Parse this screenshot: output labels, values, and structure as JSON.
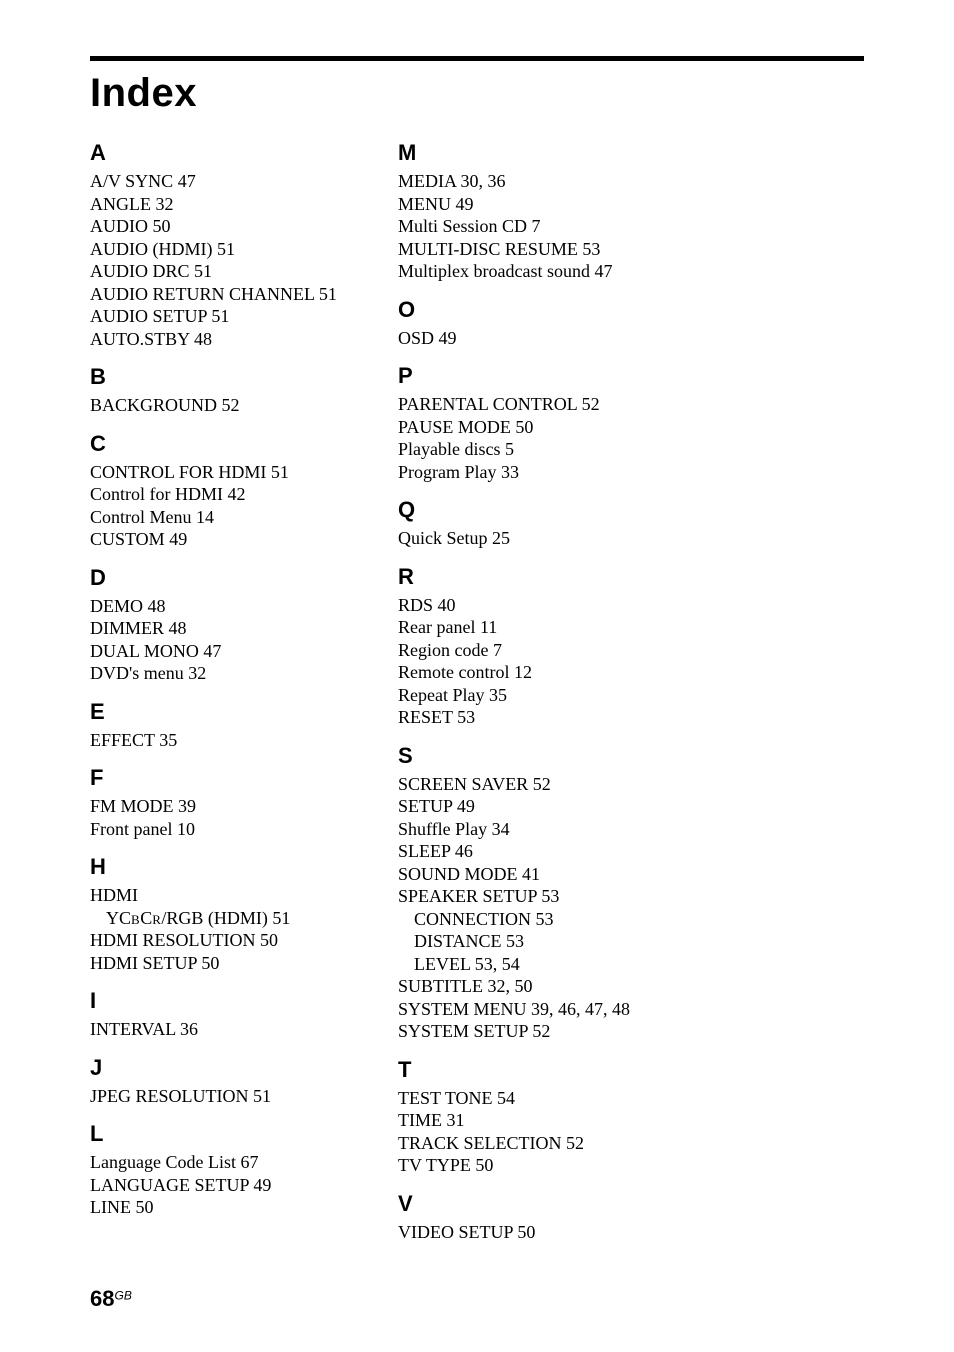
{
  "title": "Index",
  "page_number": "68",
  "page_locale": "GB",
  "columns": [
    {
      "groups": [
        {
          "letter": "A",
          "entries": [
            {
              "text": "A/V SYNC 47"
            },
            {
              "text": "ANGLE 32"
            },
            {
              "text": "AUDIO 50"
            },
            {
              "text": "AUDIO (HDMI) 51"
            },
            {
              "text": "AUDIO DRC 51"
            },
            {
              "text": "AUDIO RETURN CHANNEL 51"
            },
            {
              "text": "AUDIO SETUP 51"
            },
            {
              "text": "AUTO.STBY 48"
            }
          ]
        },
        {
          "letter": "B",
          "entries": [
            {
              "text": "BACKGROUND 52"
            }
          ]
        },
        {
          "letter": "C",
          "entries": [
            {
              "text": "CONTROL FOR HDMI 51"
            },
            {
              "text": "Control for HDMI 42"
            },
            {
              "text": "Control Menu 14"
            },
            {
              "text": "CUSTOM 49"
            }
          ]
        },
        {
          "letter": "D",
          "entries": [
            {
              "text": "DEMO 48"
            },
            {
              "text": "DIMMER 48"
            },
            {
              "text": "DUAL MONO 47"
            },
            {
              "text": "DVD's menu 32"
            }
          ]
        },
        {
          "letter": "E",
          "entries": [
            {
              "text": "EFFECT 35"
            }
          ]
        },
        {
          "letter": "F",
          "entries": [
            {
              "text": "FM MODE 39"
            },
            {
              "text": "Front panel 10"
            }
          ]
        },
        {
          "letter": "H",
          "entries": [
            {
              "text": "HDMI"
            },
            {
              "text_html": "YC<span class='sc'>b</span>C<span class='sc'>r</span>/RGB (HDMI) 51",
              "sub": true
            },
            {
              "text": "HDMI RESOLUTION 50"
            },
            {
              "text": "HDMI SETUP 50"
            }
          ]
        },
        {
          "letter": "I",
          "entries": [
            {
              "text": "INTERVAL 36"
            }
          ]
        },
        {
          "letter": "J",
          "entries": [
            {
              "text": "JPEG RESOLUTION 51"
            }
          ]
        },
        {
          "letter": "L",
          "entries": [
            {
              "text": "Language Code List 67"
            },
            {
              "text": "LANGUAGE SETUP 49"
            },
            {
              "text": "LINE 50"
            }
          ]
        }
      ]
    },
    {
      "groups": [
        {
          "letter": "M",
          "entries": [
            {
              "text": "MEDIA 30, 36"
            },
            {
              "text": "MENU 49"
            },
            {
              "text": "Multi Session CD 7"
            },
            {
              "text": "MULTI-DISC RESUME 53"
            },
            {
              "text": "Multiplex broadcast sound 47"
            }
          ]
        },
        {
          "letter": "O",
          "entries": [
            {
              "text": "OSD 49"
            }
          ]
        },
        {
          "letter": "P",
          "entries": [
            {
              "text": "PARENTAL CONTROL 52"
            },
            {
              "text": "PAUSE MODE 50"
            },
            {
              "text": "Playable discs 5"
            },
            {
              "text": "Program Play 33"
            }
          ]
        },
        {
          "letter": "Q",
          "entries": [
            {
              "text": "Quick Setup 25"
            }
          ]
        },
        {
          "letter": "R",
          "entries": [
            {
              "text": "RDS 40"
            },
            {
              "text": "Rear panel 11"
            },
            {
              "text": "Region code 7"
            },
            {
              "text": "Remote control 12"
            },
            {
              "text": "Repeat Play 35"
            },
            {
              "text": "RESET 53"
            }
          ]
        },
        {
          "letter": "S",
          "entries": [
            {
              "text": "SCREEN SAVER 52"
            },
            {
              "text": "SETUP 49"
            },
            {
              "text": "Shuffle Play 34"
            },
            {
              "text": "SLEEP 46"
            },
            {
              "text": "SOUND MODE 41"
            },
            {
              "text": "SPEAKER SETUP 53"
            },
            {
              "text": "CONNECTION 53",
              "sub": true
            },
            {
              "text": "DISTANCE 53",
              "sub": true
            },
            {
              "text": "LEVEL 53, 54",
              "sub": true
            },
            {
              "text": "SUBTITLE 32, 50"
            },
            {
              "text": "SYSTEM MENU 39, 46, 47, 48"
            },
            {
              "text": "SYSTEM SETUP 52"
            }
          ]
        },
        {
          "letter": "T",
          "entries": [
            {
              "text": "TEST TONE 54"
            },
            {
              "text": "TIME 31"
            },
            {
              "text": "TRACK SELECTION 52"
            },
            {
              "text": "TV TYPE 50"
            }
          ]
        },
        {
          "letter": "V",
          "entries": [
            {
              "text": "VIDEO SETUP 50"
            }
          ]
        }
      ]
    }
  ],
  "colors": {
    "text": "#000000",
    "background": "#ffffff",
    "rule": "#000000"
  }
}
